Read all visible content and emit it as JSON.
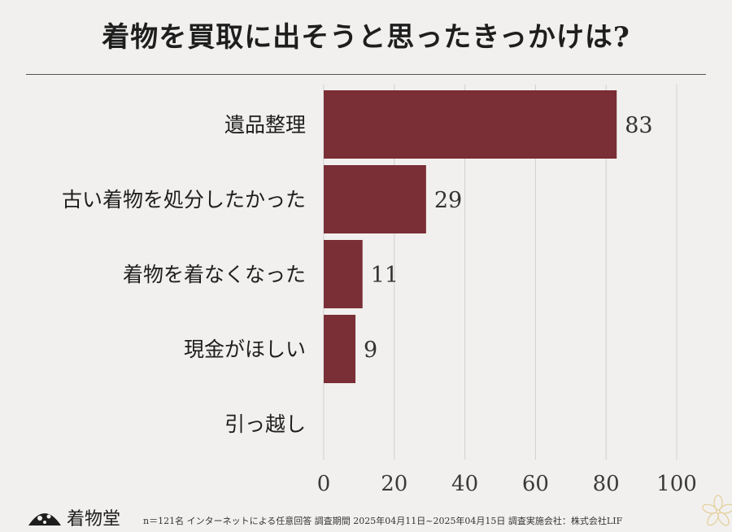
{
  "chart_data": {
    "type": "bar",
    "orientation": "horizontal",
    "title": "着物を買取に出そうと思ったきっかけは?",
    "categories": [
      "遺品整理",
      "古い着物を処分したかった",
      "着物を着なくなった",
      "現金がほしい",
      "引っ越し"
    ],
    "values": [
      83,
      29,
      11,
      9,
      0
    ],
    "value_labels": [
      "83",
      "29",
      "11",
      "9",
      ""
    ],
    "xlim": [
      0,
      100
    ],
    "xticks": [
      "0",
      "20",
      "40",
      "60",
      "80",
      "100"
    ],
    "bar_color": "#7a2e35",
    "grid": true
  },
  "footer": {
    "brand": "着物堂",
    "note": "n＝121名 インターネットによる任意回答 調査期間 2025年04月11日~2025年04月15日 調査実施会社：株式会社LIF"
  },
  "colors": {
    "bar": "#7a2e35",
    "text": "#1e1e1e",
    "grid": "#cfcfcf"
  }
}
